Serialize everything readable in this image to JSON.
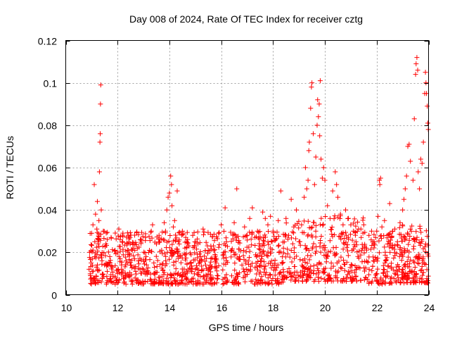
{
  "chart_data": {
    "type": "scatter",
    "title": "Day 008 of 2024, Rate Of TEC Index for receiver cztg",
    "xlabel": "GPS time / hours",
    "ylabel": "ROTI / TECUs",
    "xlim": [
      10,
      24
    ],
    "ylim": [
      0,
      0.12
    ],
    "xticks": [
      10,
      12,
      14,
      16,
      18,
      20,
      22,
      24
    ],
    "xtick_labels": [
      "10",
      "12",
      "14",
      "16",
      "18",
      "20",
      "22",
      "24"
    ],
    "yticks": [
      0,
      0.02,
      0.04,
      0.06,
      0.08,
      0.1,
      0.12
    ],
    "ytick_labels": [
      "0",
      "0.02",
      "0.04",
      "0.06",
      "0.08",
      "0.1",
      "0.12"
    ],
    "grid": true,
    "marker": "+",
    "color": "#ff0000",
    "series": [
      {
        "name": "ROTI",
        "points": [
          [
            10.9,
            0.012
          ],
          [
            10.92,
            0.02
          ],
          [
            10.95,
            0.009
          ],
          [
            10.98,
            0.015
          ],
          [
            11.0,
            0.029
          ],
          [
            11.02,
            0.011
          ],
          [
            11.05,
            0.033
          ],
          [
            11.08,
            0.008
          ],
          [
            11.1,
            0.052
          ],
          [
            11.12,
            0.018
          ],
          [
            11.15,
            0.038
          ],
          [
            11.18,
            0.013
          ],
          [
            11.2,
            0.031
          ],
          [
            11.22,
            0.044
          ],
          [
            11.25,
            0.025
          ],
          [
            11.28,
            0.035
          ],
          [
            11.3,
            0.058
          ],
          [
            11.32,
            0.072
          ],
          [
            11.33,
            0.076
          ],
          [
            11.34,
            0.09
          ],
          [
            11.35,
            0.099
          ],
          [
            11.37,
            0.04
          ],
          [
            11.4,
            0.016
          ],
          [
            11.45,
            0.03
          ],
          [
            11.5,
            0.014
          ],
          [
            11.55,
            0.024
          ],
          [
            11.6,
            0.011
          ],
          [
            11.7,
            0.018
          ],
          [
            11.75,
            0.027
          ],
          [
            11.8,
            0.013
          ],
          [
            11.9,
            0.021
          ],
          [
            12.0,
            0.01
          ],
          [
            12.05,
            0.031
          ],
          [
            12.1,
            0.017
          ],
          [
            12.15,
            0.012
          ],
          [
            12.2,
            0.025
          ],
          [
            12.3,
            0.009
          ],
          [
            12.4,
            0.019
          ],
          [
            12.5,
            0.014
          ],
          [
            12.6,
            0.022
          ],
          [
            12.7,
            0.011
          ],
          [
            12.8,
            0.016
          ],
          [
            12.9,
            0.026
          ],
          [
            13.0,
            0.012
          ],
          [
            13.1,
            0.018
          ],
          [
            13.2,
            0.02
          ],
          [
            13.3,
            0.03
          ],
          [
            13.35,
            0.033
          ],
          [
            13.4,
            0.015
          ],
          [
            13.5,
            0.024
          ],
          [
            13.6,
            0.028
          ],
          [
            13.7,
            0.021
          ],
          [
            13.8,
            0.034
          ],
          [
            13.85,
            0.03
          ],
          [
            13.9,
            0.04
          ],
          [
            13.95,
            0.046
          ],
          [
            14.0,
            0.048
          ],
          [
            14.05,
            0.056
          ],
          [
            14.08,
            0.052
          ],
          [
            14.1,
            0.042
          ],
          [
            14.15,
            0.032
          ],
          [
            14.2,
            0.035
          ],
          [
            14.3,
            0.049
          ],
          [
            14.35,
            0.025
          ],
          [
            14.4,
            0.018
          ],
          [
            14.5,
            0.03
          ],
          [
            14.6,
            0.022
          ],
          [
            14.7,
            0.026
          ],
          [
            14.8,
            0.015
          ],
          [
            14.9,
            0.028
          ],
          [
            15.0,
            0.012
          ],
          [
            15.1,
            0.024
          ],
          [
            15.2,
            0.018
          ],
          [
            15.3,
            0.031
          ],
          [
            15.4,
            0.014
          ],
          [
            15.5,
            0.021
          ],
          [
            15.6,
            0.017
          ],
          [
            15.7,
            0.023
          ],
          [
            15.8,
            0.015
          ],
          [
            15.9,
            0.029
          ],
          [
            16.0,
            0.033
          ],
          [
            16.1,
            0.02
          ],
          [
            16.15,
            0.041
          ],
          [
            16.2,
            0.016
          ],
          [
            16.4,
            0.021
          ],
          [
            16.45,
            0.028
          ],
          [
            16.5,
            0.034
          ],
          [
            16.6,
            0.05
          ],
          [
            16.7,
            0.018
          ],
          [
            16.8,
            0.014
          ],
          [
            16.9,
            0.032
          ],
          [
            17.0,
            0.028
          ],
          [
            17.1,
            0.036
          ],
          [
            17.2,
            0.041
          ],
          [
            17.3,
            0.027
          ],
          [
            17.4,
            0.03
          ],
          [
            17.5,
            0.023
          ],
          [
            17.6,
            0.039
          ],
          [
            17.7,
            0.036
          ],
          [
            17.8,
            0.033
          ],
          [
            17.9,
            0.037
          ],
          [
            18.0,
            0.03
          ],
          [
            18.1,
            0.026
          ],
          [
            18.2,
            0.035
          ],
          [
            18.3,
            0.049
          ],
          [
            18.4,
            0.022
          ],
          [
            18.5,
            0.036
          ],
          [
            18.6,
            0.028
          ],
          [
            18.7,
            0.045
          ],
          [
            18.8,
            0.032
          ],
          [
            18.9,
            0.04
          ],
          [
            19.0,
            0.025
          ],
          [
            19.1,
            0.033
          ],
          [
            19.2,
            0.046
          ],
          [
            19.25,
            0.06
          ],
          [
            19.3,
            0.05
          ],
          [
            19.35,
            0.054
          ],
          [
            19.38,
            0.068
          ],
          [
            19.4,
            0.072
          ],
          [
            19.45,
            0.088
          ],
          [
            19.48,
            0.098
          ],
          [
            19.5,
            0.1
          ],
          [
            19.55,
            0.076
          ],
          [
            19.6,
            0.052
          ],
          [
            19.65,
            0.065
          ],
          [
            19.7,
            0.08
          ],
          [
            19.72,
            0.092
          ],
          [
            19.75,
            0.084
          ],
          [
            19.78,
            0.09
          ],
          [
            19.8,
            0.075
          ],
          [
            19.82,
            0.101
          ],
          [
            19.85,
            0.064
          ],
          [
            19.9,
            0.055
          ],
          [
            19.95,
            0.06
          ],
          [
            20.0,
            0.054
          ],
          [
            20.1,
            0.042
          ],
          [
            20.2,
            0.036
          ],
          [
            20.3,
            0.049
          ],
          [
            20.4,
            0.058
          ],
          [
            20.45,
            0.052
          ],
          [
            20.5,
            0.046
          ],
          [
            20.6,
            0.038
          ],
          [
            20.7,
            0.033
          ],
          [
            20.8,
            0.04
          ],
          [
            20.9,
            0.027
          ],
          [
            21.0,
            0.033
          ],
          [
            21.1,
            0.03
          ],
          [
            21.2,
            0.025
          ],
          [
            21.3,
            0.031
          ],
          [
            21.4,
            0.027
          ],
          [
            21.5,
            0.033
          ],
          [
            21.6,
            0.022
          ],
          [
            21.7,
            0.028
          ],
          [
            21.8,
            0.03
          ],
          [
            21.9,
            0.025
          ],
          [
            22.0,
            0.03
          ],
          [
            22.05,
            0.037
          ],
          [
            22.1,
            0.054
          ],
          [
            22.12,
            0.052
          ],
          [
            22.15,
            0.055
          ],
          [
            22.2,
            0.032
          ],
          [
            22.3,
            0.035
          ],
          [
            22.4,
            0.028
          ],
          [
            22.5,
            0.043
          ],
          [
            22.6,
            0.022
          ],
          [
            22.7,
            0.031
          ],
          [
            22.8,
            0.025
          ],
          [
            22.9,
            0.034
          ],
          [
            23.0,
            0.04
          ],
          [
            23.05,
            0.045
          ],
          [
            23.1,
            0.05
          ],
          [
            23.15,
            0.056
          ],
          [
            23.2,
            0.07
          ],
          [
            23.25,
            0.071
          ],
          [
            23.3,
            0.063
          ],
          [
            23.4,
            0.054
          ],
          [
            23.45,
            0.083
          ],
          [
            23.5,
            0.104
          ],
          [
            23.52,
            0.109
          ],
          [
            23.55,
            0.112
          ],
          [
            23.58,
            0.106
          ],
          [
            23.6,
            0.058
          ],
          [
            23.65,
            0.05
          ],
          [
            23.7,
            0.064
          ],
          [
            23.75,
            0.062
          ],
          [
            23.8,
            0.072
          ],
          [
            23.85,
            0.095
          ],
          [
            23.88,
            0.105
          ],
          [
            23.9,
            0.1
          ],
          [
            23.92,
            0.095
          ],
          [
            23.95,
            0.089
          ],
          [
            23.97,
            0.081
          ],
          [
            23.99,
            0.078
          ]
        ],
        "dense_band": {
          "start_hour": 10.9,
          "end_hour": 24.0,
          "typical_range": [
            0.005,
            0.03
          ],
          "approx_count": 1500
        }
      }
    ]
  }
}
